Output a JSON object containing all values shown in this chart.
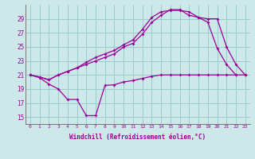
{
  "x": [
    0,
    1,
    2,
    3,
    4,
    5,
    6,
    7,
    8,
    9,
    10,
    11,
    12,
    13,
    14,
    15,
    16,
    17,
    18,
    19,
    20,
    21,
    22,
    23
  ],
  "line1": [
    21.0,
    20.7,
    20.3,
    21.0,
    21.5,
    22.0,
    22.5,
    23.0,
    23.5,
    24.0,
    25.0,
    25.5,
    26.8,
    28.5,
    29.5,
    30.3,
    30.3,
    29.5,
    29.2,
    28.5,
    24.8,
    22.5,
    21.0,
    null
  ],
  "line2": [
    21.0,
    20.7,
    20.3,
    21.0,
    21.5,
    22.0,
    22.8,
    23.5,
    24.0,
    24.5,
    25.3,
    26.0,
    27.5,
    29.2,
    30.0,
    30.2,
    30.2,
    30.0,
    29.2,
    29.0,
    29.0,
    25.0,
    22.5,
    21.0
  ],
  "line3": [
    21.0,
    20.6,
    19.7,
    19.0,
    17.5,
    17.5,
    15.2,
    15.2,
    19.5,
    19.6,
    20.0,
    20.2,
    20.5,
    20.8,
    21.0,
    21.0,
    21.0,
    21.0,
    21.0,
    21.0,
    21.0,
    21.0,
    21.0,
    21.0
  ],
  "color": "#990099",
  "bg_color": "#cce8e8",
  "grid_color": "#99cccc",
  "xlabel": "Windchill (Refroidissement éolien,°C)",
  "yticks": [
    15,
    17,
    19,
    21,
    23,
    25,
    27,
    29
  ],
  "ylim": [
    14.0,
    31.0
  ],
  "xlim": [
    -0.5,
    23.5
  ]
}
